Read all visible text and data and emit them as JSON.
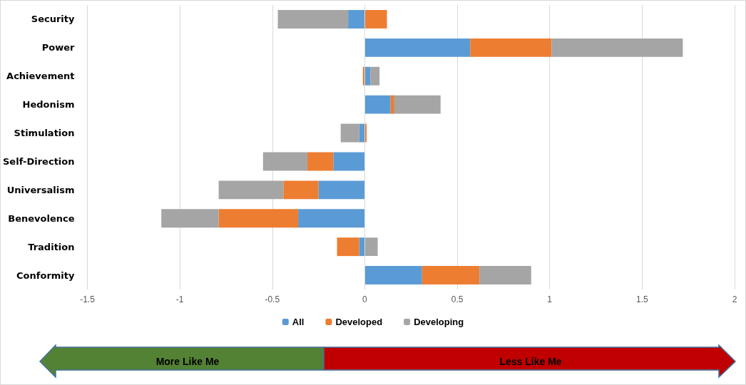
{
  "chart_data": {
    "type": "bar",
    "orientation": "horizontal",
    "stacked": true,
    "categories": [
      "Security",
      "Power",
      "Achievement",
      "Hedonism",
      "Stimulation",
      "Self-Direction",
      "Universalism",
      "Benevolence",
      "Tradition",
      "Conformity"
    ],
    "series": [
      {
        "name": "All",
        "color": "#5b9bd5",
        "values": [
          -0.09,
          0.57,
          0.03,
          0.14,
          -0.03,
          -0.17,
          -0.25,
          -0.36,
          -0.03,
          0.31
        ]
      },
      {
        "name": "Developed",
        "color": "#ed7d31",
        "values": [
          0.12,
          0.44,
          -0.01,
          0.02,
          0.01,
          -0.14,
          -0.19,
          -0.43,
          -0.12,
          0.31
        ]
      },
      {
        "name": "Developing",
        "color": "#a5a5a5",
        "values": [
          -0.38,
          0.71,
          0.05,
          0.25,
          -0.1,
          -0.24,
          -0.35,
          -0.31,
          0.07,
          0.28
        ]
      }
    ],
    "xlim": [
      -1.5,
      2
    ],
    "xticks": [
      -1.5,
      -1,
      -0.5,
      0,
      0.5,
      1,
      1.5,
      2
    ],
    "grid": "x",
    "legend": "bottom",
    "annotations": [
      "More Like Me",
      "Less Like Me"
    ]
  }
}
